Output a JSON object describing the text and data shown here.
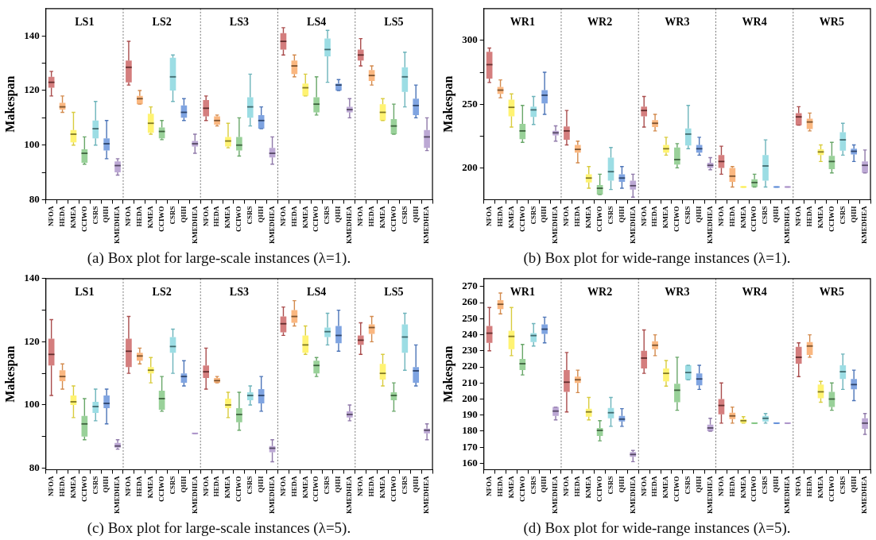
{
  "chart_data": [
    {
      "type": "box",
      "title": "(a) Box plot for large-scale instances (λ=1).",
      "ylabel": "Makespan",
      "categories": [
        "NFOA",
        "HEDA",
        "KMEA",
        "CCIWO",
        "CSRS",
        "QHH",
        "KMEDHEA",
        "NFOA",
        "HEDA",
        "KMEA",
        "CCIWO",
        "CSRS",
        "QHH",
        "KMEDHEA",
        "NFOA",
        "HEDA",
        "KMEA",
        "CCIWO",
        "CSRS",
        "QHH",
        "KMEDHEA",
        "NFOA",
        "HEDA",
        "KMEA",
        "CCIWO",
        "CSRS",
        "QHH",
        "KMEDHEA",
        "NFOA",
        "HEDA",
        "KMEA",
        "CCIWO",
        "CSRS",
        "QHH",
        "KMEDHEA"
      ],
      "colors": [
        "#c85a5a",
        "#f8a35c",
        "#fff04a",
        "#7cc47c",
        "#80d4dc",
        "#5b8ad8",
        "#a98fc8",
        "#c85a5a",
        "#f8a35c",
        "#fff04a",
        "#7cc47c",
        "#80d4dc",
        "#5b8ad8",
        "#a98fc8",
        "#c85a5a",
        "#f8a35c",
        "#fff04a",
        "#7cc47c",
        "#80d4dc",
        "#5b8ad8",
        "#a98fc8",
        "#c85a5a",
        "#f8a35c",
        "#fff04a",
        "#7cc47c",
        "#80d4dc",
        "#5b8ad8",
        "#a98fc8",
        "#c85a5a",
        "#f8a35c",
        "#fff04a",
        "#7cc47c",
        "#80d4dc",
        "#5b8ad8",
        "#a98fc8"
      ],
      "boxes": [
        {
          "low": 118,
          "q1": 121,
          "median": 123,
          "q3": 125,
          "high": 127
        },
        {
          "low": 112,
          "q1": 113,
          "median": 114,
          "q3": 115.5,
          "high": 118
        },
        {
          "low": 100,
          "q1": 101,
          "median": 104,
          "q3": 105.5,
          "high": 112
        },
        {
          "low": 93,
          "q1": 93.5,
          "median": 97,
          "q3": 98.5,
          "high": 103
        },
        {
          "low": 100,
          "q1": 102.5,
          "median": 106,
          "q3": 109,
          "high": 116
        },
        {
          "low": 95,
          "q1": 98,
          "median": 100.5,
          "q3": 102.5,
          "high": 109
        },
        {
          "low": 89,
          "q1": 90,
          "median": 92.5,
          "q3": 94,
          "high": 95
        },
        {
          "low": 122,
          "q1": 123,
          "median": 128.5,
          "q3": 131,
          "high": 138
        },
        {
          "low": 115,
          "q1": 115,
          "median": 117,
          "q3": 118,
          "high": 120
        },
        {
          "low": 104,
          "q1": 104.5,
          "median": 108,
          "q3": 111.5,
          "high": 114
        },
        {
          "low": 102,
          "q1": 102.5,
          "median": 105,
          "q3": 106.5,
          "high": 109
        },
        {
          "low": 116,
          "q1": 120,
          "median": 125,
          "q3": 132,
          "high": 133
        },
        {
          "low": 109,
          "q1": 110,
          "median": 112,
          "q3": 114.5,
          "high": 117
        },
        {
          "low": 97,
          "q1": 99.5,
          "median": 100.5,
          "q3": 101.5,
          "high": 104
        },
        {
          "low": 109,
          "q1": 110.5,
          "median": 113.5,
          "q3": 116.5,
          "high": 118
        },
        {
          "low": 107,
          "q1": 107.5,
          "median": 109,
          "q3": 110.5,
          "high": 111
        },
        {
          "low": 99,
          "q1": 99.5,
          "median": 101.5,
          "q3": 103,
          "high": 108
        },
        {
          "low": 96,
          "q1": 98,
          "median": 100,
          "q3": 103,
          "high": 110
        },
        {
          "low": 107,
          "q1": 110,
          "median": 114,
          "q3": 117.5,
          "high": 126
        },
        {
          "low": 106,
          "q1": 106,
          "median": 109,
          "q3": 111,
          "high": 114
        },
        {
          "low": 93,
          "q1": 95.5,
          "median": 97,
          "q3": 99,
          "high": 103
        },
        {
          "low": 133,
          "q1": 135,
          "median": 138,
          "q3": 141,
          "high": 143
        },
        {
          "low": 125,
          "q1": 126,
          "median": 129,
          "q3": 131,
          "high": 133
        },
        {
          "low": 118,
          "q1": 118,
          "median": 121,
          "q3": 122.5,
          "high": 126
        },
        {
          "low": 111,
          "q1": 112,
          "median": 115,
          "q3": 117.5,
          "high": 125
        },
        {
          "low": 123,
          "q1": 132.5,
          "median": 135,
          "q3": 139,
          "high": 142
        },
        {
          "low": 120,
          "q1": 120,
          "median": 122,
          "q3": 122.5,
          "high": 124
        },
        {
          "low": 110,
          "q1": 112,
          "median": 113,
          "q3": 114,
          "high": 117
        },
        {
          "low": 129,
          "q1": 131,
          "median": 133,
          "q3": 135,
          "high": 139
        },
        {
          "low": 122,
          "q1": 123.5,
          "median": 125.5,
          "q3": 127.5,
          "high": 129
        },
        {
          "low": 109,
          "q1": 109,
          "median": 112,
          "q3": 115,
          "high": 117
        },
        {
          "low": 104,
          "q1": 104,
          "median": 107,
          "q3": 109.5,
          "high": 115
        },
        {
          "low": 114,
          "q1": 119.5,
          "median": 125,
          "q3": 128.5,
          "high": 134
        },
        {
          "low": 110,
          "q1": 111,
          "median": 114.5,
          "q3": 117,
          "high": 122
        },
        {
          "low": 98,
          "q1": 99,
          "median": 103,
          "q3": 105.5,
          "high": 110
        }
      ],
      "ylim": [
        80,
        150
      ],
      "yticks": [
        80,
        {
          "value": 90,
          "label": null
        },
        100,
        {
          "value": 110,
          "label": null
        },
        120,
        {
          "value": 130,
          "label": null
        },
        140
      ],
      "annotations": [
        "LS1",
        "LS2",
        "LS3",
        "LS4",
        "LS5"
      ]
    },
    {
      "type": "box",
      "title": "(b) Box plot for wide-range instances (λ=1).",
      "ylabel": "Makespan",
      "categories": [
        "NFOA",
        "HEDA",
        "KMEA",
        "CCIWO",
        "CSRS",
        "QHH",
        "KMEDHEA",
        "NFOA",
        "HEDA",
        "KMEA",
        "CCIWO",
        "CSRS",
        "QHH",
        "KMEDHEA",
        "NFOA",
        "HEDA",
        "KMEA",
        "CCIWO",
        "CSRS",
        "QHH",
        "KMEDHEA",
        "NFOA",
        "HEDA",
        "KMEA",
        "CCIWO",
        "CSRS",
        "QHH",
        "KMEDHEA",
        "NFOA",
        "HEDA",
        "KMEA",
        "CCIWO",
        "CSRS",
        "QHH",
        "KMEDHEA"
      ],
      "colors": [
        "#c85a5a",
        "#f8a35c",
        "#fff04a",
        "#7cc47c",
        "#80d4dc",
        "#5b8ad8",
        "#a98fc8",
        "#c85a5a",
        "#f8a35c",
        "#fff04a",
        "#7cc47c",
        "#80d4dc",
        "#5b8ad8",
        "#a98fc8",
        "#c85a5a",
        "#f8a35c",
        "#fff04a",
        "#7cc47c",
        "#80d4dc",
        "#5b8ad8",
        "#a98fc8",
        "#c85a5a",
        "#f8a35c",
        "#fff04a",
        "#7cc47c",
        "#80d4dc",
        "#5b8ad8",
        "#a98fc8",
        "#c85a5a",
        "#f8a35c",
        "#fff04a",
        "#7cc47c",
        "#80d4dc",
        "#5b8ad8",
        "#a98fc8"
      ],
      "boxes": [
        {
          "low": 267,
          "q1": 270,
          "median": 281,
          "q3": 291,
          "high": 294
        },
        {
          "low": 255,
          "q1": 258,
          "median": 261,
          "q3": 263.5,
          "high": 269
        },
        {
          "low": 232,
          "q1": 240.5,
          "median": 247.5,
          "q3": 253.5,
          "high": 258
        },
        {
          "low": 220,
          "q1": 222.5,
          "median": 229,
          "q3": 234.5,
          "high": 249
        },
        {
          "low": 234,
          "q1": 240,
          "median": 245.5,
          "q3": 248,
          "high": 256
        },
        {
          "low": 242,
          "q1": 250.5,
          "median": 257,
          "q3": 261,
          "high": 275
        },
        {
          "low": 221,
          "q1": 225.5,
          "median": 227.5,
          "q3": 229,
          "high": 233
        },
        {
          "low": 218,
          "q1": 222,
          "median": 229,
          "q3": 232.5,
          "high": 245
        },
        {
          "low": 204,
          "q1": 212,
          "median": 214.5,
          "q3": 218,
          "high": 221
        },
        {
          "low": 184,
          "q1": 188.5,
          "median": 192,
          "q3": 195,
          "high": 201
        },
        {
          "low": 179,
          "q1": 179,
          "median": 184,
          "q3": 186.5,
          "high": 195
        },
        {
          "low": 183,
          "q1": 190,
          "median": 197,
          "q3": 208,
          "high": 216
        },
        {
          "low": 184,
          "q1": 189,
          "median": 192,
          "q3": 195,
          "high": 201
        },
        {
          "low": 177,
          "q1": 183,
          "median": 186,
          "q3": 190,
          "high": 195
        },
        {
          "low": 232,
          "q1": 240.5,
          "median": 245,
          "q3": 248,
          "high": 256
        },
        {
          "low": 229,
          "q1": 232,
          "median": 235,
          "q3": 237.5,
          "high": 242
        },
        {
          "low": 210,
          "q1": 212,
          "median": 215,
          "q3": 218,
          "high": 224
        },
        {
          "low": 200,
          "q1": 202.5,
          "median": 206.5,
          "q3": 216,
          "high": 219
        },
        {
          "low": 215,
          "q1": 217.5,
          "median": 226.5,
          "q3": 231,
          "high": 249
        },
        {
          "low": 210,
          "q1": 212,
          "median": 215,
          "q3": 218,
          "high": 224
        },
        {
          "low": 198.5,
          "q1": 200,
          "median": 202,
          "q3": 204,
          "high": 208
        },
        {
          "low": 195,
          "q1": 200,
          "median": 205,
          "q3": 210,
          "high": 217
        },
        {
          "low": 185,
          "q1": 189,
          "median": 193.5,
          "q3": 200,
          "high": 201
        },
        {
          "low": 185,
          "q1": 185,
          "median": 185,
          "q3": 185,
          "high": 185
        },
        {
          "low": 185,
          "q1": 185,
          "median": 188.5,
          "q3": 191,
          "high": 195
        },
        {
          "low": 185,
          "q1": 190,
          "median": 201.5,
          "q3": 210,
          "high": 222
        },
        {
          "low": 185,
          "q1": 185,
          "median": 185,
          "q3": 185,
          "high": 185
        },
        {
          "low": 185,
          "q1": 185,
          "median": 185,
          "q3": 185,
          "high": 185
        },
        {
          "low": 233.5,
          "q1": 233.5,
          "median": 240,
          "q3": 243,
          "high": 248
        },
        {
          "low": 229,
          "q1": 230.5,
          "median": 236,
          "q3": 238.5,
          "high": 243
        },
        {
          "low": 205,
          "q1": 210,
          "median": 212.5,
          "q3": 214.5,
          "high": 218
        },
        {
          "low": 196,
          "q1": 199,
          "median": 205,
          "q3": 209.5,
          "high": 220
        },
        {
          "low": 210,
          "q1": 213.5,
          "median": 222,
          "q3": 228,
          "high": 235
        },
        {
          "low": 205,
          "q1": 210.5,
          "median": 213,
          "q3": 215,
          "high": 218
        },
        {
          "low": 196,
          "q1": 196,
          "median": 202,
          "q3": 205,
          "high": 214
        }
      ],
      "ylim": [
        175,
        325
      ],
      "yticks": [
        200,
        {
          "value": 225,
          "label": null
        },
        250,
        {
          "value": 275,
          "label": null
        },
        300
      ],
      "annotations": [
        "WR1",
        "WR2",
        "WR3",
        "WR4",
        "WR5"
      ]
    },
    {
      "type": "box",
      "title": "(c) Box plot for large-scale instances (λ=5).",
      "ylabel": "Makespan",
      "categories": [
        "NFOA",
        "HEDA",
        "KMEA",
        "CCIWO",
        "CSRS",
        "QHH",
        "KMEDHEA",
        "NFOA",
        "HEDA",
        "KMEA",
        "CCIWO",
        "CSRS",
        "QHH",
        "KMEDHEA",
        "NFOA",
        "HEDA",
        "KMEA",
        "CCIWO",
        "CSRS",
        "QHH",
        "KMEDHEA",
        "NFOA",
        "HEDA",
        "KMEA",
        "CCIWO",
        "CSRS",
        "QHH",
        "KMEDHEA",
        "NFOA",
        "HEDA",
        "KMEA",
        "CCIWO",
        "CSRS",
        "QHH",
        "KMEDHEA"
      ],
      "colors": [
        "#c85a5a",
        "#f8a35c",
        "#fff04a",
        "#7cc47c",
        "#80d4dc",
        "#5b8ad8",
        "#a98fc8",
        "#c85a5a",
        "#f8a35c",
        "#fff04a",
        "#7cc47c",
        "#80d4dc",
        "#5b8ad8",
        "#a98fc8",
        "#c85a5a",
        "#f8a35c",
        "#fff04a",
        "#7cc47c",
        "#80d4dc",
        "#5b8ad8",
        "#a98fc8",
        "#c85a5a",
        "#f8a35c",
        "#fff04a",
        "#7cc47c",
        "#80d4dc",
        "#5b8ad8",
        "#a98fc8",
        "#c85a5a",
        "#f8a35c",
        "#fff04a",
        "#7cc47c",
        "#80d4dc",
        "#5b8ad8",
        "#a98fc8"
      ],
      "boxes": [
        {
          "low": 103,
          "q1": 112.5,
          "median": 116,
          "q3": 121,
          "high": 127
        },
        {
          "low": 105,
          "q1": 107.5,
          "median": 109,
          "q3": 111,
          "high": 113
        },
        {
          "low": 96,
          "q1": 100,
          "median": 101,
          "q3": 103,
          "high": 106
        },
        {
          "low": 89,
          "q1": 90,
          "median": 94,
          "q3": 96.5,
          "high": 102
        },
        {
          "low": 95,
          "q1": 97.5,
          "median": 99.5,
          "q3": 101,
          "high": 105
        },
        {
          "low": 94,
          "q1": 99,
          "median": 100.5,
          "q3": 103,
          "high": 105
        },
        {
          "low": 86,
          "q1": 86.5,
          "median": 87,
          "q3": 88,
          "high": 89
        },
        {
          "low": 110,
          "q1": 112,
          "median": 117,
          "q3": 121,
          "high": 128
        },
        {
          "low": 113,
          "q1": 114,
          "median": 115.5,
          "q3": 116.5,
          "high": 118
        },
        {
          "low": 107,
          "q1": 110,
          "median": 111,
          "q3": 112,
          "high": 115
        },
        {
          "low": 98,
          "q1": 98.5,
          "median": 102,
          "q3": 104.5,
          "high": 109
        },
        {
          "low": 110,
          "q1": 116.5,
          "median": 118.5,
          "q3": 121.5,
          "high": 124
        },
        {
          "low": 106,
          "q1": 107,
          "median": 109,
          "q3": 110,
          "high": 114
        },
        {
          "low": 91,
          "q1": 91,
          "median": 91,
          "q3": 91,
          "high": 91
        },
        {
          "low": 105,
          "q1": 108.5,
          "median": 110.5,
          "q3": 112.5,
          "high": 118
        },
        {
          "low": 107,
          "q1": 107,
          "median": 107.7,
          "q3": 108.5,
          "high": 109
        },
        {
          "low": 96,
          "q1": 99,
          "median": 100,
          "q3": 102,
          "high": 104
        },
        {
          "low": 92,
          "q1": 94.5,
          "median": 97,
          "q3": 99,
          "high": 104
        },
        {
          "low": 100,
          "q1": 101.5,
          "median": 103,
          "q3": 104,
          "high": 106
        },
        {
          "low": 98,
          "q1": 100.5,
          "median": 103,
          "q3": 105,
          "high": 109
        },
        {
          "low": 82,
          "q1": 85,
          "median": 86.3,
          "q3": 87,
          "high": 89
        },
        {
          "low": 122,
          "q1": 123,
          "median": 125.7,
          "q3": 128,
          "high": 131
        },
        {
          "low": 125,
          "q1": 126,
          "median": 128,
          "q3": 130,
          "high": 133
        },
        {
          "low": 116,
          "q1": 116.5,
          "median": 119,
          "q3": 122,
          "high": 125
        },
        {
          "low": 109,
          "q1": 110,
          "median": 112.5,
          "q3": 114,
          "high": 115
        },
        {
          "low": 119,
          "q1": 121.5,
          "median": 123.2,
          "q3": 124.5,
          "high": 129
        },
        {
          "low": 117,
          "q1": 119.5,
          "median": 122,
          "q3": 125,
          "high": 130
        },
        {
          "low": 95,
          "q1": 96,
          "median": 97,
          "q3": 98,
          "high": 100
        },
        {
          "low": 116,
          "q1": 119,
          "median": 120.5,
          "q3": 122,
          "high": 126
        },
        {
          "low": 120,
          "q1": 122.5,
          "median": 124.5,
          "q3": 125.5,
          "high": 128
        },
        {
          "low": 106,
          "q1": 108,
          "median": 110,
          "q3": 113,
          "high": 116
        },
        {
          "low": 98,
          "q1": 101.5,
          "median": 103,
          "q3": 104,
          "high": 107
        },
        {
          "low": 111,
          "q1": 116.5,
          "median": 121.5,
          "q3": 125.5,
          "high": 129
        },
        {
          "low": 106,
          "q1": 107,
          "median": 110.8,
          "q3": 112,
          "high": 119
        },
        {
          "low": 89,
          "q1": 91,
          "median": 92,
          "q3": 92.5,
          "high": 94
        }
      ],
      "ylim": [
        79.5,
        140
      ],
      "yticks": [
        80,
        {
          "value": 90,
          "label": null
        },
        100,
        {
          "value": 110,
          "label": null
        },
        120,
        {
          "value": 130,
          "label": null
        },
        140
      ],
      "annotations": [
        "LS1",
        "LS2",
        "LS3",
        "LS4",
        "LS5"
      ]
    },
    {
      "type": "box",
      "title": "(d) Box plot for wide-range instances (λ=5).",
      "ylabel": "Makespan",
      "categories": [
        "NFOA",
        "HEDA",
        "KMEA",
        "CCIWO",
        "CSRS",
        "QHH",
        "KMEDHEA",
        "NFOA",
        "HEDA",
        "KMEA",
        "CCIWO",
        "CSRS",
        "QHH",
        "KMEDHEA",
        "NFOA",
        "HEDA",
        "KMEA",
        "CCIWO",
        "CSRS",
        "QHH",
        "KMEDHEA",
        "NFOA",
        "HEDA",
        "KMEA",
        "CCIWO",
        "CSRS",
        "QHH",
        "KMEDHEA",
        "NFOA",
        "HEDA",
        "KMEA",
        "CCIWO",
        "CSRS",
        "QHH",
        "KMEDHEA"
      ],
      "colors": [
        "#c85a5a",
        "#f8a35c",
        "#fff04a",
        "#7cc47c",
        "#80d4dc",
        "#5b8ad8",
        "#a98fc8",
        "#c85a5a",
        "#f8a35c",
        "#fff04a",
        "#7cc47c",
        "#80d4dc",
        "#5b8ad8",
        "#a98fc8",
        "#c85a5a",
        "#f8a35c",
        "#fff04a",
        "#7cc47c",
        "#80d4dc",
        "#5b8ad8",
        "#a98fc8",
        "#c85a5a",
        "#f8a35c",
        "#fff04a",
        "#7cc47c",
        "#80d4dc",
        "#5b8ad8",
        "#a98fc8",
        "#c85a5a",
        "#f8a35c",
        "#fff04a",
        "#7cc47c",
        "#80d4dc",
        "#5b8ad8",
        "#a98fc8"
      ],
      "boxes": [
        {
          "low": 230,
          "q1": 235,
          "median": 241,
          "q3": 245.5,
          "high": 257
        },
        {
          "low": 253,
          "q1": 256,
          "median": 259,
          "q3": 261.5,
          "high": 266
        },
        {
          "low": 227,
          "q1": 231,
          "median": 239,
          "q3": 242.5,
          "high": 257
        },
        {
          "low": 215,
          "q1": 218,
          "median": 222,
          "q3": 225,
          "high": 234
        },
        {
          "low": 233,
          "q1": 235.5,
          "median": 239.5,
          "q3": 241,
          "high": 247
        },
        {
          "low": 235,
          "q1": 240.5,
          "median": 243.5,
          "q3": 246.5,
          "high": 251
        },
        {
          "low": 187,
          "q1": 189.5,
          "median": 192.5,
          "q3": 195,
          "high": 195
        },
        {
          "low": 192,
          "q1": 204.5,
          "median": 210.5,
          "q3": 218,
          "high": 229
        },
        {
          "low": 204,
          "q1": 210,
          "median": 212,
          "q3": 214,
          "high": 218
        },
        {
          "low": 187,
          "q1": 189,
          "median": 192,
          "q3": 194,
          "high": 201
        },
        {
          "low": 174,
          "q1": 177,
          "median": 180.5,
          "q3": 182,
          "high": 186.5
        },
        {
          "low": 183,
          "q1": 188,
          "median": 191.5,
          "q3": 194.5,
          "high": 201
        },
        {
          "low": 183,
          "q1": 186,
          "median": 187.5,
          "q3": 189.5,
          "high": 194
        },
        {
          "low": 161,
          "q1": 164,
          "median": 165.5,
          "q3": 167,
          "high": 168
        },
        {
          "low": 216,
          "q1": 219,
          "median": 225.5,
          "q3": 230,
          "high": 243
        },
        {
          "low": 227,
          "q1": 231,
          "median": 233.5,
          "q3": 236,
          "high": 240
        },
        {
          "low": 208,
          "q1": 211,
          "median": 216,
          "q3": 219,
          "high": 224
        },
        {
          "low": 193,
          "q1": 198,
          "median": 205.5,
          "q3": 209.5,
          "high": 226
        },
        {
          "low": 212,
          "q1": 212,
          "median": 216.5,
          "q3": 221,
          "high": 221
        },
        {
          "low": 206,
          "q1": 208.5,
          "median": 212.5,
          "q3": 216,
          "high": 221
        },
        {
          "low": 180,
          "q1": 180,
          "median": 182,
          "q3": 184,
          "high": 188
        },
        {
          "low": 185,
          "q1": 190.5,
          "median": 196,
          "q3": 200,
          "high": 210
        },
        {
          "low": 185,
          "q1": 187.5,
          "median": 189.5,
          "q3": 191.5,
          "high": 195
        },
        {
          "low": 185,
          "q1": 185,
          "median": 186.5,
          "q3": 187.5,
          "high": 189
        },
        {
          "low": 185,
          "q1": 185,
          "median": 185,
          "q3": 185,
          "high": 185
        },
        {
          "low": 185,
          "q1": 186,
          "median": 188,
          "q3": 189.5,
          "high": 191
        },
        {
          "low": 185,
          "q1": 185,
          "median": 185,
          "q3": 185,
          "high": 185
        },
        {
          "low": 185,
          "q1": 185,
          "median": 185,
          "q3": 185,
          "high": 185
        },
        {
          "low": 214,
          "q1": 222,
          "median": 226,
          "q3": 232.5,
          "high": 235
        },
        {
          "low": 226,
          "q1": 227.5,
          "median": 233,
          "q3": 235.5,
          "high": 240
        },
        {
          "low": 198,
          "q1": 200.5,
          "median": 204.5,
          "q3": 209,
          "high": 211
        },
        {
          "low": 193,
          "q1": 195,
          "median": 200,
          "q3": 204.5,
          "high": 210
        },
        {
          "low": 206,
          "q1": 212.5,
          "median": 217,
          "q3": 221,
          "high": 228
        },
        {
          "low": 199,
          "q1": 206,
          "median": 209,
          "q3": 212.5,
          "high": 218
        },
        {
          "low": 178,
          "q1": 181.5,
          "median": 185,
          "q3": 188,
          "high": 191
        }
      ],
      "ylim": [
        156,
        275
      ],
      "yticks": [
        160,
        170,
        180,
        190,
        200,
        210,
        220,
        230,
        240,
        250,
        260,
        270
      ],
      "annotations": [
        "WR1",
        "WR2",
        "WR3",
        "WR4",
        "WR5"
      ]
    }
  ]
}
